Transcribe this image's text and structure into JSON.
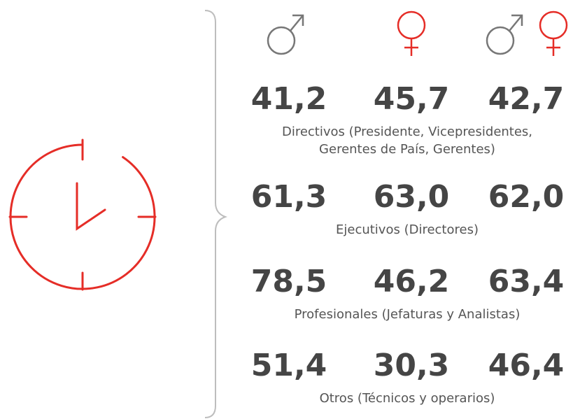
{
  "rows": [
    {
      "values": [
        "41,2",
        "45,7",
        "42,7"
      ],
      "label": [
        "Directivos (Presidente, Vicepresidentes,",
        "Gerentes de País, Gerentes)"
      ]
    },
    {
      "values": [
        "61,3",
        "63,0",
        "62,0"
      ],
      "label": [
        "Ejecutivos (Directores)"
      ]
    },
    {
      "values": [
        "78,5",
        "46,2",
        "63,4"
      ],
      "label": [
        "Profesionales (Jefaturas y Analistas)"
      ]
    },
    {
      "values": [
        "51,4",
        "30,3",
        "46,4"
      ],
      "label": [
        "Otros (Técnicos y operarios)"
      ]
    }
  ]
}
